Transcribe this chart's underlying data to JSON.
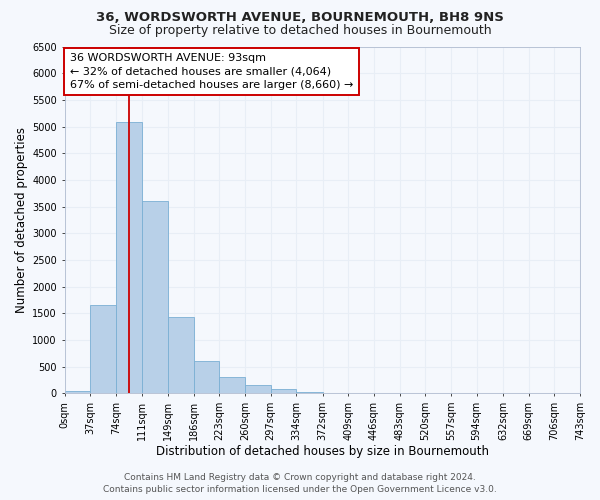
{
  "title": "36, WORDSWORTH AVENUE, BOURNEMOUTH, BH8 9NS",
  "subtitle": "Size of property relative to detached houses in Bournemouth",
  "xlabel": "Distribution of detached houses by size in Bournemouth",
  "ylabel": "Number of detached properties",
  "bar_color": "#b8d0e8",
  "bar_edge_color": "#7aafd4",
  "background_color": "#f5f8fd",
  "grid_color": "#e8eef6",
  "bin_edges": [
    0,
    37,
    74,
    111,
    149,
    186,
    223,
    260,
    297,
    334,
    372,
    409,
    446,
    483,
    520,
    557,
    594,
    632,
    669,
    706,
    743
  ],
  "bar_values": [
    50,
    1650,
    5080,
    3600,
    1420,
    610,
    300,
    155,
    80,
    30,
    10,
    5,
    0,
    0,
    0,
    0,
    0,
    0,
    0,
    0
  ],
  "tick_labels": [
    "0sqm",
    "37sqm",
    "74sqm",
    "111sqm",
    "149sqm",
    "186sqm",
    "223sqm",
    "260sqm",
    "297sqm",
    "334sqm",
    "372sqm",
    "409sqm",
    "446sqm",
    "483sqm",
    "520sqm",
    "557sqm",
    "594sqm",
    "632sqm",
    "669sqm",
    "706sqm",
    "743sqm"
  ],
  "ylim": [
    0,
    6500
  ],
  "yticks": [
    0,
    500,
    1000,
    1500,
    2000,
    2500,
    3000,
    3500,
    4000,
    4500,
    5000,
    5500,
    6000,
    6500
  ],
  "vline_x": 93,
  "annotation_line1": "36 WORDSWORTH AVENUE: 93sqm",
  "annotation_line2": "← 32% of detached houses are smaller (4,064)",
  "annotation_line3": "67% of semi-detached houses are larger (8,660) →",
  "annotation_box_color": "#ffffff",
  "annotation_box_edge": "#cc0000",
  "vline_color": "#cc0000",
  "footer_line1": "Contains HM Land Registry data © Crown copyright and database right 2024.",
  "footer_line2": "Contains public sector information licensed under the Open Government Licence v3.0.",
  "title_fontsize": 9.5,
  "subtitle_fontsize": 9,
  "axis_label_fontsize": 8.5,
  "tick_fontsize": 7,
  "annotation_fontsize": 8,
  "footer_fontsize": 6.5
}
